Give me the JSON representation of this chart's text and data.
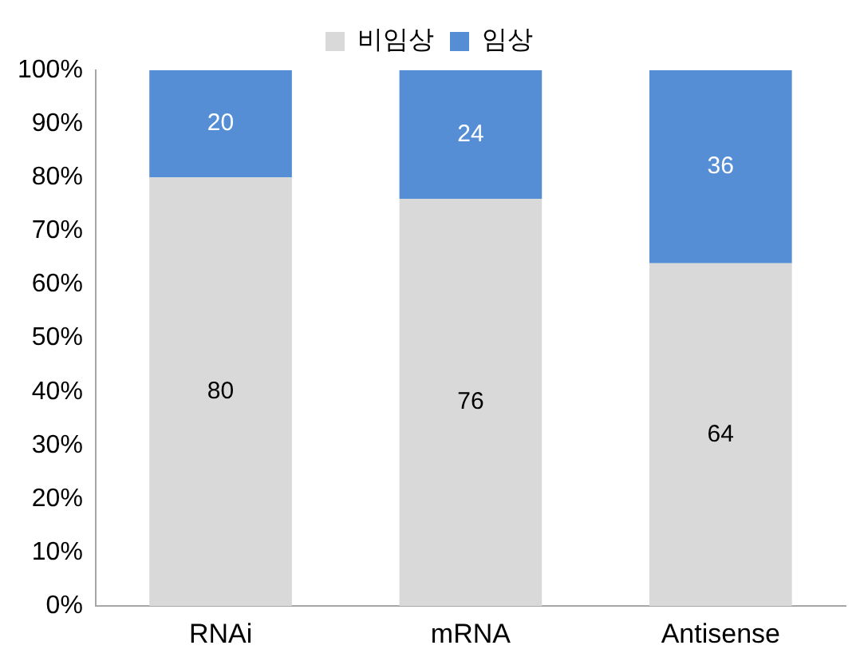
{
  "chart_data": {
    "type": "bar",
    "stacked": true,
    "categories": [
      "RNAi",
      "mRNA",
      "Antisense"
    ],
    "series": [
      {
        "name": "비임상",
        "color": "#d9d9d9",
        "values": [
          80,
          76,
          64
        ]
      },
      {
        "name": "임상",
        "color": "#558ed5",
        "values": [
          20,
          24,
          36
        ]
      }
    ],
    "ylim": [
      0,
      100
    ],
    "yticks": [
      {
        "value": 0,
        "label": "0%"
      },
      {
        "value": 10,
        "label": "10%"
      },
      {
        "value": 20,
        "label": "20%"
      },
      {
        "value": 30,
        "label": "30%"
      },
      {
        "value": 40,
        "label": "40%"
      },
      {
        "value": 50,
        "label": "50%"
      },
      {
        "value": 60,
        "label": "60%"
      },
      {
        "value": 70,
        "label": "70%"
      },
      {
        "value": 80,
        "label": "80%"
      },
      {
        "value": 90,
        "label": "90%"
      },
      {
        "value": 100,
        "label": "100%"
      }
    ],
    "grid": false,
    "legend": "top",
    "data_labels": true
  }
}
